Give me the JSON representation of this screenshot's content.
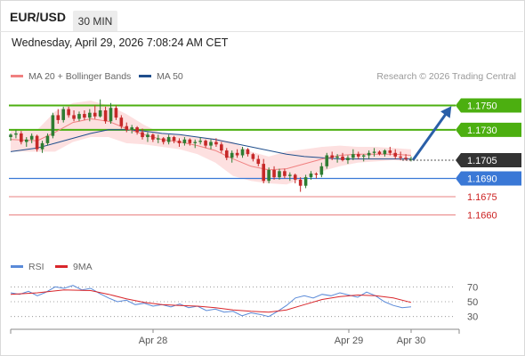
{
  "header": {
    "symbol": "EUR/USD",
    "timeframe_label": "30 MIN",
    "timestamp": "Wednesday, April 29, 2026 7:08:24 AM CET"
  },
  "legend": {
    "ma20_label": "MA 20 + Bollinger Bands",
    "ma50_label": "MA 50",
    "credit": "Research © 2026 Trading Central"
  },
  "rsi_legend": {
    "rsi_label": "RSI",
    "ma9_label": "9MA"
  },
  "colors": {
    "bullish_candle": "#2e7d32",
    "bearish_candle": "#c62828",
    "ma20": "#f08080",
    "bollinger_fill": "#fde0e0",
    "ma50": "#1f4e8c",
    "resistance": "#4caf10",
    "pivot_label_bg": "#333333",
    "support_line": "#3a78d6",
    "target_line": "#e98080",
    "target_text": "#cc2222",
    "arrow": "#2a5fa8",
    "rsi": "#5a8ad8",
    "rsi_ma": "#d9262b"
  },
  "chart_data": {
    "type": "candlestick",
    "ylim": [
      1.1645,
      1.1765
    ],
    "xlim": [
      0,
      100
    ],
    "x_tick_labels": [
      {
        "label": "Apr 28",
        "x": 32
      },
      {
        "label": "Apr 29",
        "x": 76
      },
      {
        "label": "Apr 30",
        "x": 90
      }
    ],
    "price_levels": [
      {
        "label": "1.1750",
        "value": 1.175,
        "kind": "resistance"
      },
      {
        "label": "1.1730",
        "value": 1.173,
        "kind": "resistance"
      },
      {
        "label": "1.1705",
        "value": 1.1705,
        "kind": "pivot"
      },
      {
        "label": "1.1690",
        "value": 1.169,
        "kind": "support"
      },
      {
        "label": "1.1675",
        "value": 1.1675,
        "kind": "target"
      },
      {
        "label": "1.1660",
        "value": 1.166,
        "kind": "target"
      }
    ],
    "forecast_arrow": {
      "from": [
        90,
        1.1705
      ],
      "to": [
        98,
        1.175
      ]
    },
    "candles": [
      [
        1.1724,
        1.1727,
        1.1721,
        1.1726
      ],
      [
        1.1726,
        1.173,
        1.1723,
        1.1727
      ],
      [
        1.1727,
        1.1729,
        1.1718,
        1.172
      ],
      [
        1.172,
        1.1724,
        1.1716,
        1.1722
      ],
      [
        1.1722,
        1.1727,
        1.1719,
        1.1725
      ],
      [
        1.1725,
        1.1726,
        1.1712,
        1.1714
      ],
      [
        1.1714,
        1.1721,
        1.1711,
        1.1719
      ],
      [
        1.1719,
        1.1727,
        1.1717,
        1.1725
      ],
      [
        1.1725,
        1.1744,
        1.1723,
        1.1742
      ],
      [
        1.1742,
        1.1747,
        1.1735,
        1.1738
      ],
      [
        1.1738,
        1.1749,
        1.1736,
        1.1747
      ],
      [
        1.1747,
        1.1749,
        1.174,
        1.1742
      ],
      [
        1.1742,
        1.1746,
        1.1737,
        1.1739
      ],
      [
        1.1739,
        1.1745,
        1.1737,
        1.1743
      ],
      [
        1.1743,
        1.1746,
        1.1738,
        1.174
      ],
      [
        1.174,
        1.1747,
        1.1737,
        1.1744
      ],
      [
        1.1744,
        1.175,
        1.1739,
        1.1741
      ],
      [
        1.1741,
        1.1755,
        1.174,
        1.1746
      ],
      [
        1.1746,
        1.1749,
        1.1735,
        1.1737
      ],
      [
        1.1737,
        1.1752,
        1.1735,
        1.1748
      ],
      [
        1.1748,
        1.175,
        1.1738,
        1.174
      ],
      [
        1.174,
        1.1742,
        1.1731,
        1.1733
      ],
      [
        1.1733,
        1.1736,
        1.1728,
        1.173
      ],
      [
        1.173,
        1.1734,
        1.1727,
        1.1732
      ],
      [
        1.1732,
        1.1733,
        1.1726,
        1.1728
      ],
      [
        1.1728,
        1.1731,
        1.1722,
        1.1724
      ],
      [
        1.1724,
        1.1728,
        1.172,
        1.1726
      ],
      [
        1.1726,
        1.1727,
        1.172,
        1.1722
      ],
      [
        1.1722,
        1.1726,
        1.1719,
        1.1723
      ],
      [
        1.1723,
        1.1724,
        1.1718,
        1.172
      ],
      [
        1.172,
        1.1726,
        1.1718,
        1.1724
      ],
      [
        1.1724,
        1.1725,
        1.1719,
        1.1721
      ],
      [
        1.1721,
        1.1723,
        1.1716,
        1.1719
      ],
      [
        1.1719,
        1.1724,
        1.1717,
        1.1722
      ],
      [
        1.1722,
        1.1723,
        1.1717,
        1.1719
      ],
      [
        1.1719,
        1.1722,
        1.1715,
        1.172
      ],
      [
        1.172,
        1.1724,
        1.1718,
        1.1721
      ],
      [
        1.1721,
        1.1722,
        1.1715,
        1.1717
      ],
      [
        1.1717,
        1.1722,
        1.1714,
        1.172
      ],
      [
        1.172,
        1.1723,
        1.1716,
        1.1718
      ],
      [
        1.1718,
        1.172,
        1.1711,
        1.1713
      ],
      [
        1.1713,
        1.1715,
        1.1705,
        1.1707
      ],
      [
        1.1707,
        1.1713,
        1.1703,
        1.1711
      ],
      [
        1.1711,
        1.1714,
        1.1707,
        1.1709
      ],
      [
        1.1709,
        1.1716,
        1.1707,
        1.1714
      ],
      [
        1.1714,
        1.1715,
        1.1708,
        1.171
      ],
      [
        1.171,
        1.1711,
        1.1704,
        1.1706
      ],
      [
        1.1706,
        1.1709,
        1.17,
        1.1702
      ],
      [
        1.1702,
        1.1706,
        1.1686,
        1.1688
      ],
      [
        1.1688,
        1.1699,
        1.1686,
        1.1697
      ],
      [
        1.1697,
        1.17,
        1.1689,
        1.1691
      ],
      [
        1.1691,
        1.1698,
        1.1689,
        1.1696
      ],
      [
        1.1696,
        1.1698,
        1.169,
        1.1692
      ],
      [
        1.1692,
        1.1695,
        1.1688,
        1.1693
      ],
      [
        1.1693,
        1.1694,
        1.1686,
        1.1689
      ],
      [
        1.1689,
        1.1691,
        1.1679,
        1.1684
      ],
      [
        1.1684,
        1.1693,
        1.1682,
        1.1691
      ],
      [
        1.1691,
        1.1696,
        1.1689,
        1.1694
      ],
      [
        1.1694,
        1.1695,
        1.169,
        1.1693
      ],
      [
        1.1693,
        1.1703,
        1.1691,
        1.17
      ],
      [
        1.17,
        1.1711,
        1.1698,
        1.1709
      ],
      [
        1.1709,
        1.1712,
        1.1705,
        1.1707
      ],
      [
        1.1707,
        1.171,
        1.1703,
        1.1708
      ],
      [
        1.1708,
        1.1711,
        1.1704,
        1.1705
      ],
      [
        1.1705,
        1.1709,
        1.1702,
        1.1707
      ],
      [
        1.1707,
        1.1714,
        1.1705,
        1.171
      ],
      [
        1.171,
        1.1712,
        1.1706,
        1.1708
      ],
      [
        1.1708,
        1.171,
        1.1704,
        1.1709
      ],
      [
        1.1709,
        1.1713,
        1.1706,
        1.1711
      ],
      [
        1.1711,
        1.1715,
        1.1708,
        1.1712
      ],
      [
        1.1712,
        1.1713,
        1.1709,
        1.171
      ],
      [
        1.171,
        1.1714,
        1.1708,
        1.1713
      ],
      [
        1.1713,
        1.1716,
        1.1709,
        1.1711
      ],
      [
        1.1711,
        1.1714,
        1.1706,
        1.1708
      ],
      [
        1.1708,
        1.1712,
        1.1705,
        1.1707
      ],
      [
        1.1707,
        1.171,
        1.1705,
        1.1706
      ],
      [
        1.1706,
        1.1708,
        1.1704,
        1.1706
      ]
    ],
    "ma20": [
      [
        0,
        1.1722
      ],
      [
        6,
        1.1721
      ],
      [
        10,
        1.1728
      ],
      [
        14,
        1.1736
      ],
      [
        18,
        1.1739
      ],
      [
        22,
        1.1737
      ],
      [
        26,
        1.1731
      ],
      [
        30,
        1.1726
      ],
      [
        34,
        1.1722
      ],
      [
        38,
        1.172
      ],
      [
        42,
        1.1717
      ],
      [
        46,
        1.1713
      ],
      [
        50,
        1.1706
      ],
      [
        54,
        1.17
      ],
      [
        58,
        1.1697
      ],
      [
        62,
        1.1698
      ],
      [
        66,
        1.1702
      ],
      [
        70,
        1.1706
      ],
      [
        74,
        1.1709
      ],
      [
        78,
        1.171
      ],
      [
        82,
        1.171
      ],
      [
        86,
        1.171
      ],
      [
        90,
        1.1709
      ]
    ],
    "bb_upper": [
      [
        0,
        1.173
      ],
      [
        6,
        1.173
      ],
      [
        10,
        1.1745
      ],
      [
        14,
        1.1752
      ],
      [
        18,
        1.1754
      ],
      [
        22,
        1.175
      ],
      [
        26,
        1.1743
      ],
      [
        30,
        1.1734
      ],
      [
        34,
        1.1727
      ],
      [
        38,
        1.1726
      ],
      [
        42,
        1.1724
      ],
      [
        46,
        1.1723
      ],
      [
        50,
        1.172
      ],
      [
        54,
        1.1712
      ],
      [
        58,
        1.1708
      ],
      [
        62,
        1.1712
      ],
      [
        66,
        1.1714
      ],
      [
        70,
        1.1716
      ],
      [
        74,
        1.1717
      ],
      [
        78,
        1.1716
      ],
      [
        82,
        1.1716
      ],
      [
        86,
        1.1715
      ],
      [
        90,
        1.1714
      ]
    ],
    "bb_lower": [
      [
        0,
        1.1712
      ],
      [
        6,
        1.1712
      ],
      [
        10,
        1.1712
      ],
      [
        14,
        1.172
      ],
      [
        18,
        1.1724
      ],
      [
        22,
        1.1724
      ],
      [
        26,
        1.1719
      ],
      [
        30,
        1.1718
      ],
      [
        34,
        1.1716
      ],
      [
        38,
        1.1714
      ],
      [
        42,
        1.171
      ],
      [
        46,
        1.1703
      ],
      [
        50,
        1.1692
      ],
      [
        54,
        1.1688
      ],
      [
        58,
        1.1686
      ],
      [
        62,
        1.1685
      ],
      [
        66,
        1.169
      ],
      [
        70,
        1.1696
      ],
      [
        74,
        1.17
      ],
      [
        78,
        1.1703
      ],
      [
        82,
        1.1704
      ],
      [
        86,
        1.1705
      ],
      [
        90,
        1.1704
      ]
    ],
    "ma50": [
      [
        0,
        1.1712
      ],
      [
        6,
        1.1715
      ],
      [
        10,
        1.1719
      ],
      [
        14,
        1.1723
      ],
      [
        18,
        1.1727
      ],
      [
        22,
        1.173
      ],
      [
        26,
        1.173
      ],
      [
        30,
        1.1729
      ],
      [
        34,
        1.1727
      ],
      [
        38,
        1.1726
      ],
      [
        42,
        1.1724
      ],
      [
        46,
        1.1722
      ],
      [
        50,
        1.1719
      ],
      [
        54,
        1.1716
      ],
      [
        58,
        1.1713
      ],
      [
        62,
        1.171
      ],
      [
        66,
        1.1708
      ],
      [
        70,
        1.1707
      ],
      [
        74,
        1.1706
      ],
      [
        78,
        1.1706
      ],
      [
        82,
        1.1706
      ],
      [
        86,
        1.1706
      ],
      [
        90,
        1.1706
      ]
    ],
    "rsi_ticks": [
      {
        "label": "70",
        "value": 70
      },
      {
        "label": "50",
        "value": 50
      },
      {
        "label": "30",
        "value": 30
      }
    ],
    "rsi_ylim": [
      20,
      80
    ],
    "rsi": [
      [
        0,
        62
      ],
      [
        2,
        60
      ],
      [
        4,
        64
      ],
      [
        6,
        58
      ],
      [
        8,
        63
      ],
      [
        10,
        70
      ],
      [
        12,
        68
      ],
      [
        14,
        72
      ],
      [
        16,
        66
      ],
      [
        18,
        68
      ],
      [
        20,
        61
      ],
      [
        22,
        55
      ],
      [
        24,
        50
      ],
      [
        26,
        52
      ],
      [
        28,
        46
      ],
      [
        30,
        48
      ],
      [
        32,
        44
      ],
      [
        34,
        46
      ],
      [
        36,
        43
      ],
      [
        38,
        47
      ],
      [
        40,
        42
      ],
      [
        42,
        44
      ],
      [
        44,
        38
      ],
      [
        46,
        40
      ],
      [
        48,
        36
      ],
      [
        50,
        37
      ],
      [
        52,
        31
      ],
      [
        54,
        35
      ],
      [
        56,
        33
      ],
      [
        58,
        30
      ],
      [
        60,
        37
      ],
      [
        62,
        45
      ],
      [
        64,
        55
      ],
      [
        66,
        58
      ],
      [
        68,
        55
      ],
      [
        70,
        60
      ],
      [
        72,
        58
      ],
      [
        74,
        62
      ],
      [
        76,
        59
      ],
      [
        78,
        56
      ],
      [
        80,
        63
      ],
      [
        82,
        58
      ],
      [
        84,
        50
      ],
      [
        86,
        45
      ],
      [
        88,
        42
      ],
      [
        90,
        43
      ]
    ],
    "rsi_ma": [
      [
        0,
        60
      ],
      [
        6,
        62
      ],
      [
        12,
        66
      ],
      [
        18,
        65
      ],
      [
        22,
        60
      ],
      [
        26,
        54
      ],
      [
        30,
        49
      ],
      [
        34,
        46
      ],
      [
        38,
        45
      ],
      [
        42,
        44
      ],
      [
        46,
        42
      ],
      [
        50,
        39
      ],
      [
        54,
        37
      ],
      [
        58,
        36
      ],
      [
        62,
        39
      ],
      [
        66,
        46
      ],
      [
        70,
        53
      ],
      [
        74,
        57
      ],
      [
        78,
        59
      ],
      [
        82,
        58
      ],
      [
        86,
        55
      ],
      [
        90,
        49
      ]
    ]
  }
}
